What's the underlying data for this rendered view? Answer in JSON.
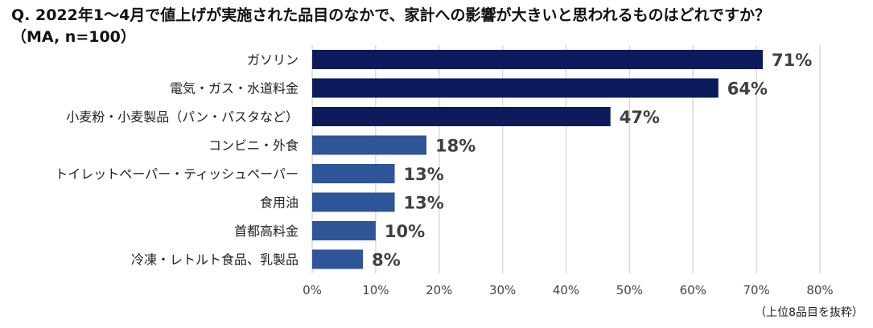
{
  "title_line1": "Q. 2022年1～4月で値上げが実施された品目のなかで、家計への影響が大きいと思われるものはどれですか？",
  "title_line2": "（MA, n=100）",
  "footnote": "（上位8品目を抜粋）",
  "colors": {
    "dark": "#0d1a5c",
    "light": "#2e5597",
    "grid": "#d9d9d9",
    "value_text": "#404040"
  },
  "chart_data": {
    "type": "bar",
    "orientation": "horizontal",
    "categories": [
      "ガソリン",
      "電気・ガス・水道料金",
      "小麦粉・小麦製品（パン・パスタなど）",
      "コンビニ・外食",
      "トイレットペーパー・ティッシュペーパー",
      "食用油",
      "首都高料金",
      "冷凍・レトルト食品、乳製品"
    ],
    "values": [
      71,
      64,
      47,
      18,
      13,
      13,
      10,
      8
    ],
    "value_labels": [
      "71%",
      "64%",
      "47%",
      "18%",
      "13%",
      "13%",
      "10%",
      "8%"
    ],
    "highlight_top_n": 3,
    "xlim": [
      0,
      80
    ],
    "xticks": [
      0,
      10,
      20,
      30,
      40,
      50,
      60,
      70,
      80
    ],
    "xtick_labels": [
      "0%",
      "10%",
      "20%",
      "30%",
      "40%",
      "50%",
      "60%",
      "70%",
      "80%"
    ],
    "grid": true
  }
}
